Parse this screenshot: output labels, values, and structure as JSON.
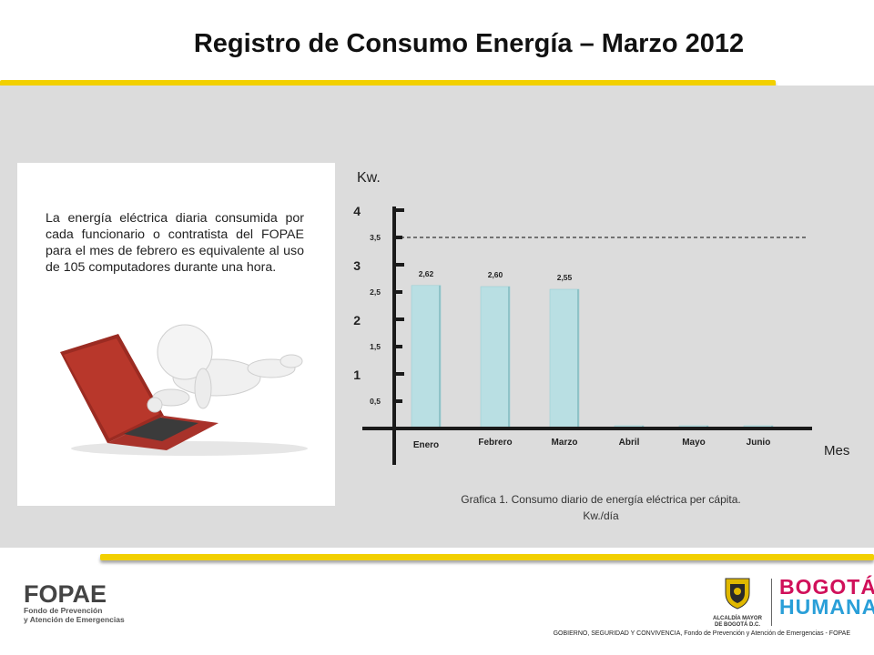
{
  "header": {
    "title": "Registro de Consumo Energía – Marzo 2012"
  },
  "info_card": {
    "text": "La energía eléctrica diaria consumida por cada funcionario o contratista del FOPAE para el mes de febrero es equivalente al uso de 105 computadores durante una hora."
  },
  "chart_data": {
    "type": "bar",
    "ylabel": "Kw.",
    "xlabel": "Mes",
    "categories": [
      "Enero",
      "Febrero",
      "Marzo",
      "Abril",
      "Mayo",
      "Junio"
    ],
    "values": [
      2.62,
      2.6,
      2.55,
      0.05,
      0.05,
      0.05
    ],
    "data_labels": [
      "2,62",
      "2,60",
      "2,55",
      "",
      "",
      ""
    ],
    "ylim": [
      0,
      4
    ],
    "major_ticks": [
      "1",
      "2",
      "3",
      "4"
    ],
    "minor_ticks": [
      "0,5",
      "1,5",
      "2,5",
      "3,5"
    ],
    "reference_line": 3.5,
    "bar_color": "#b9dfe3",
    "caption": [
      "Grafica 1. Consumo diario de energía eléctrica per cápita.",
      "Kw./día"
    ]
  },
  "footer": {
    "note": "GOBIERNO, SEGURIDAD Y CONVIVENCIA, Fondo de Prevención y Atención de Emergencias - FOPAE",
    "fopae": {
      "name": "FOPAE",
      "sub1": "Fondo de Prevención",
      "sub2": "y Atención de Emergencias"
    },
    "alcaldia": {
      "line1": "ALCALDÍA MAYOR",
      "line2": "DE BOGOTÁ D.C."
    },
    "bogota": {
      "line1": "BOGOTÁ",
      "line2": "HUMANA"
    }
  },
  "colors": {
    "accent_yellow": "#f2d000",
    "panel": "#dcdcdc",
    "bogota_pink": "#d0105a",
    "bogota_blue": "#2a9fd8"
  }
}
